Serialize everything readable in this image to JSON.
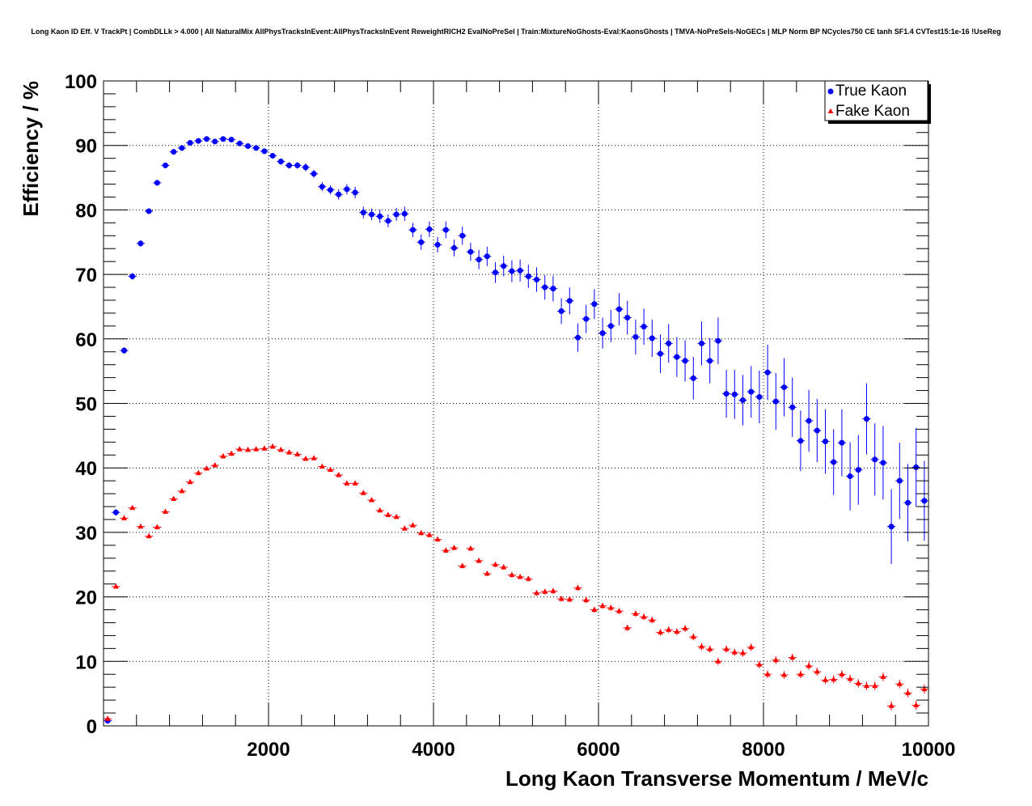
{
  "chart_data": {
    "type": "scatter",
    "title": "Long Kaon ID Eff. V TrackPt | CombDLLk > 4.000 | All NaturalMix AllPhysTracksInEvent:AllPhysTracksInEvent ReweightRICH2 EvalNoPreSel | Train:MixtureNoGhosts-Eval:KaonsGhosts | TMVA-NoPreSels-NoGECs | MLP Norm BP NCycles750 CE tanh SF1.4 CVTest15:1e-16 !UseReg",
    "xlabel": "Long Kaon Transverse Momentum / MeV/c",
    "ylabel": "Efficiency / %",
    "xlim": [
      0,
      10000
    ],
    "ylim": [
      0,
      100
    ],
    "x_ticks": [
      2000,
      4000,
      6000,
      8000,
      10000
    ],
    "x_tick_labels": [
      "2000",
      "4000",
      "6000",
      "8000",
      "10000"
    ],
    "y_ticks": [
      0,
      10,
      20,
      30,
      40,
      50,
      60,
      70,
      80,
      90,
      100
    ],
    "y_tick_labels": [
      "0",
      "10",
      "20",
      "30",
      "40",
      "50",
      "60",
      "70",
      "80",
      "90",
      "100"
    ],
    "grid": true,
    "legend_position": "top-right",
    "bin_width": 100,
    "x": [
      50,
      150,
      250,
      350,
      450,
      550,
      650,
      750,
      850,
      950,
      1050,
      1150,
      1250,
      1350,
      1450,
      1550,
      1650,
      1750,
      1850,
      1950,
      2050,
      2150,
      2250,
      2350,
      2450,
      2550,
      2650,
      2750,
      2850,
      2950,
      3050,
      3150,
      3250,
      3350,
      3450,
      3550,
      3650,
      3750,
      3850,
      3950,
      4050,
      4150,
      4250,
      4350,
      4450,
      4550,
      4650,
      4750,
      4850,
      4950,
      5050,
      5150,
      5250,
      5350,
      5450,
      5550,
      5650,
      5750,
      5850,
      5950,
      6050,
      6150,
      6250,
      6350,
      6450,
      6550,
      6650,
      6750,
      6850,
      6950,
      7050,
      7150,
      7250,
      7350,
      7450,
      7550,
      7650,
      7750,
      7850,
      7950,
      8050,
      8150,
      8250,
      8350,
      8450,
      8550,
      8650,
      8750,
      8850,
      8950,
      9050,
      9150,
      9250,
      9350,
      9450,
      9550,
      9650,
      9750,
      9850,
      9950
    ],
    "series": [
      {
        "name": "True Kaon",
        "color": "#0000ff",
        "marker": "circle",
        "values": [
          0.8,
          33.1,
          58.2,
          69.7,
          74.8,
          79.8,
          84.2,
          86.9,
          89.0,
          89.6,
          90.4,
          90.7,
          91.0,
          90.6,
          91.0,
          90.9,
          90.3,
          89.9,
          89.6,
          89.1,
          88.4,
          87.5,
          86.9,
          86.9,
          86.6,
          85.6,
          83.6,
          83.1,
          82.4,
          83.2,
          82.7,
          79.6,
          79.3,
          79.0,
          78.3,
          79.3,
          79.4,
          76.9,
          75.0,
          77.0,
          74.6,
          76.9,
          74.1,
          76.0,
          73.5,
          72.3,
          72.8,
          70.3,
          71.3,
          70.5,
          70.6,
          69.7,
          69.2,
          68.0,
          67.8,
          64.3,
          65.9,
          60.2,
          63.1,
          65.4,
          60.9,
          62.0,
          64.6,
          63.3,
          60.3,
          61.9,
          60.1,
          57.7,
          59.3,
          57.2,
          56.6,
          53.9,
          59.3,
          56.6,
          59.7,
          51.5,
          51.4,
          50.5,
          51.8,
          51.0,
          54.8,
          50.3,
          52.5,
          49.4,
          44.2,
          47.3,
          45.8,
          44.1,
          40.9,
          43.9,
          38.7,
          39.7,
          47.6,
          41.3,
          40.8,
          30.9,
          38.0,
          34.6,
          40.1,
          34.9
        ],
        "errors": [
          0.3,
          0.5,
          0.5,
          0.5,
          0.5,
          0.4,
          0.4,
          0.4,
          0.4,
          0.4,
          0.4,
          0.4,
          0.4,
          0.4,
          0.4,
          0.4,
          0.4,
          0.4,
          0.4,
          0.4,
          0.4,
          0.5,
          0.5,
          0.5,
          0.6,
          0.6,
          0.7,
          0.7,
          0.8,
          0.8,
          0.9,
          0.9,
          0.9,
          1.0,
          1.0,
          1.0,
          1.1,
          1.1,
          1.2,
          1.2,
          1.2,
          1.3,
          1.3,
          1.4,
          1.4,
          1.5,
          1.5,
          1.6,
          1.6,
          1.7,
          1.7,
          1.8,
          1.9,
          1.9,
          2.0,
          2.0,
          2.1,
          2.2,
          2.2,
          2.3,
          2.4,
          2.5,
          2.5,
          2.6,
          2.7,
          2.8,
          2.9,
          3.0,
          3.0,
          3.1,
          3.2,
          3.3,
          3.4,
          3.5,
          3.6,
          3.7,
          3.8,
          3.9,
          4.0,
          4.1,
          4.3,
          4.4,
          4.5,
          4.6,
          4.7,
          4.8,
          4.9,
          5.0,
          5.1,
          5.2,
          5.3,
          5.4,
          5.5,
          5.6,
          5.7,
          5.8,
          5.9,
          6.0,
          6.1,
          6.2
        ]
      },
      {
        "name": "Fake Kaon",
        "color": "#ff0000",
        "marker": "triangle",
        "values": [
          1.1,
          21.6,
          32.2,
          33.8,
          30.9,
          29.4,
          30.8,
          33.2,
          35.2,
          36.4,
          37.8,
          39.2,
          39.9,
          40.4,
          41.8,
          42.2,
          42.9,
          42.8,
          42.9,
          43.0,
          43.3,
          42.8,
          42.4,
          42.1,
          41.4,
          41.5,
          40.2,
          39.7,
          38.9,
          37.6,
          37.6,
          36.1,
          35.0,
          33.4,
          32.7,
          32.4,
          30.6,
          31.1,
          29.9,
          29.6,
          28.9,
          27.2,
          27.6,
          24.8,
          27.5,
          25.6,
          23.6,
          25.0,
          24.6,
          23.4,
          23.1,
          22.8,
          20.6,
          20.8,
          20.9,
          19.7,
          19.6,
          21.4,
          19.5,
          18.0,
          18.6,
          18.3,
          17.8,
          15.2,
          17.4,
          16.9,
          16.4,
          14.5,
          14.9,
          14.6,
          15.1,
          13.8,
          12.3,
          11.9,
          10.0,
          11.9,
          11.4,
          11.3,
          12.2,
          9.5,
          8.0,
          10.2,
          7.9,
          10.6,
          8.0,
          9.3,
          8.4,
          7.1,
          7.2,
          8.0,
          7.3,
          6.6,
          6.2,
          6.2,
          7.6,
          3.1,
          6.5,
          5.1,
          3.2,
          5.7
        ]
      }
    ]
  }
}
